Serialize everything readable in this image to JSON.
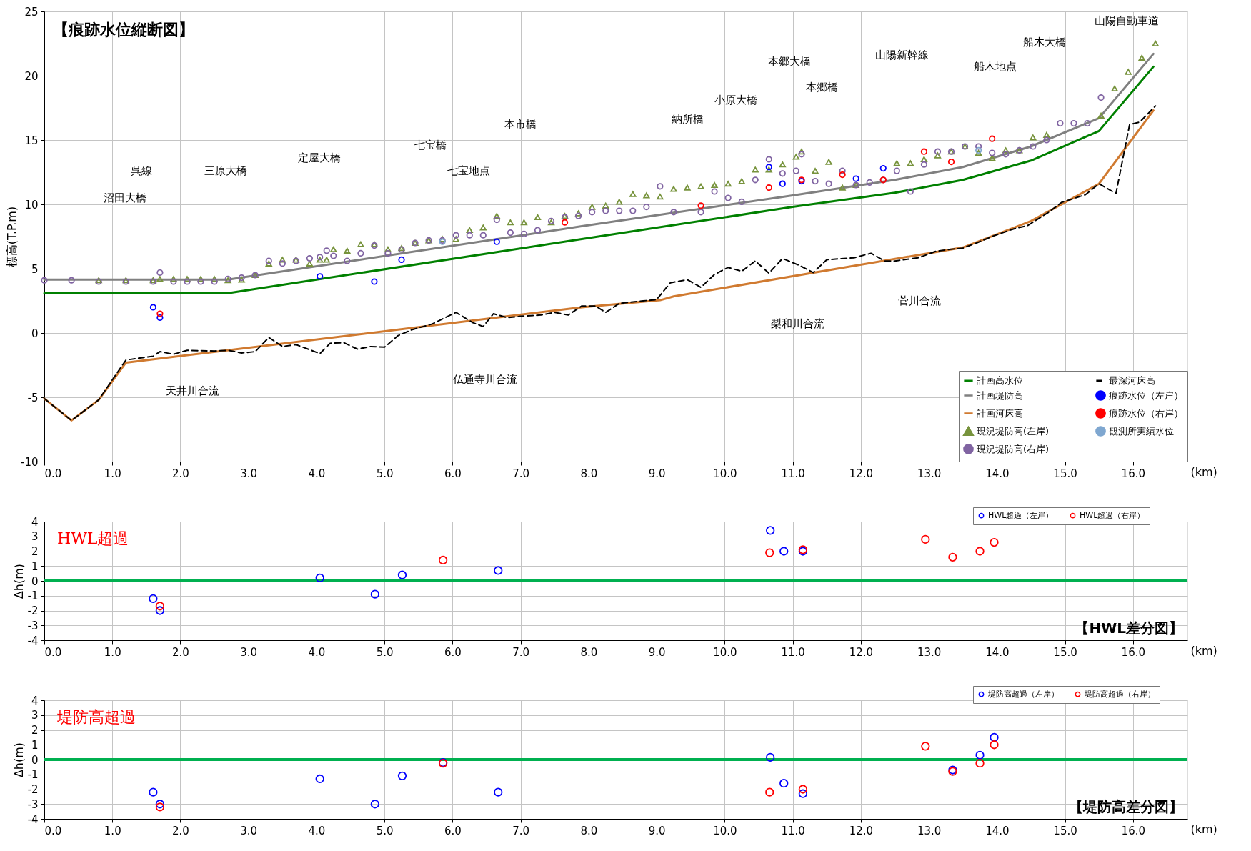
{
  "chart_data": [
    {
      "type": "line",
      "title": "【痕跡水位縦断図】",
      "xlabel": "(km)",
      "ylabel": "標高(T.P.m)",
      "xlim": [
        0,
        16.8
      ],
      "ylim": [
        -10,
        25
      ],
      "xticks": [
        {
          "value": 0,
          "label": "0.0"
        },
        {
          "value": 1,
          "label": "1.0"
        },
        {
          "value": 2,
          "label": "2.0"
        },
        {
          "value": 3,
          "label": "3.0"
        },
        {
          "value": 4,
          "label": "4.0"
        },
        {
          "value": 5,
          "label": "5.0"
        },
        {
          "value": 6,
          "label": "6.0"
        },
        {
          "value": 7,
          "label": "7.0"
        },
        {
          "value": 8,
          "label": "8.0"
        },
        {
          "value": 9,
          "label": "9.0"
        },
        {
          "value": 10,
          "label": "10.0"
        },
        {
          "value": 11,
          "label": "11.0"
        },
        {
          "value": 12,
          "label": "12.0"
        },
        {
          "value": 13,
          "label": "13.0"
        },
        {
          "value": 14,
          "label": "14.0"
        },
        {
          "value": 15,
          "label": "15.0"
        },
        {
          "value": 16,
          "label": "16.0"
        }
      ],
      "yticks": [
        -10,
        -5,
        0,
        5,
        10,
        15,
        20,
        25
      ],
      "grid": true,
      "legend": "bottom right",
      "series": [
        {
          "name": "計画高水位",
          "type": "line",
          "color": "#008000",
          "line_style": "solid",
          "x": [
            0,
            2.7,
            7.9,
            11.0,
            12.5,
            13.5,
            14.5,
            15.5,
            16.3
          ],
          "values": [
            3.1,
            3.1,
            7.3,
            9.8,
            10.9,
            11.9,
            13.4,
            15.7,
            20.7
          ]
        },
        {
          "name": "計画堤防高",
          "type": "line",
          "color": "#808080",
          "line_style": "solid",
          "x": [
            0,
            2.7,
            7.9,
            11.0,
            12.5,
            13.5,
            14.5,
            15.5,
            16.3
          ],
          "values": [
            4.15,
            4.15,
            8.3,
            10.7,
            11.9,
            12.9,
            14.5,
            16.7,
            21.7
          ]
        },
        {
          "name": "計画河床高",
          "type": "line",
          "color": "#d07a30",
          "line_style": "solid",
          "x": [
            0,
            0.4,
            0.8,
            1.2,
            7.9,
            9.05,
            9.25,
            13.5,
            14.5,
            15.5,
            16.3
          ],
          "values": [
            -5.1,
            -6.8,
            -5.2,
            -2.3,
            2.0,
            2.55,
            2.85,
            6.65,
            8.7,
            11.6,
            17.3
          ]
        },
        {
          "name": "現況堤防高(左岸)",
          "type": "scatter",
          "marker": "triangle",
          "color": "#77933c",
          "x": [
            0.8,
            1.2,
            1.6,
            1.7,
            1.9,
            2.1,
            2.3,
            2.5,
            2.7,
            2.9,
            3.1,
            3.3,
            3.5,
            3.7,
            3.9,
            4.05,
            4.15,
            4.25,
            4.45,
            4.65,
            4.85,
            5.05,
            5.25,
            5.45,
            5.65,
            5.85,
            6.05,
            6.25,
            6.45,
            6.65,
            6.85,
            7.05,
            7.25,
            7.45,
            7.65,
            7.85,
            8.05,
            8.25,
            8.45,
            8.65,
            8.85,
            9.05,
            9.25,
            9.45,
            9.65,
            9.85,
            10.05,
            10.25,
            10.45,
            10.65,
            10.85,
            11.05,
            11.13,
            11.33,
            11.53,
            11.73,
            11.93,
            12.53,
            12.73,
            12.93,
            13.13,
            13.33,
            13.53,
            13.73,
            13.93,
            14.13,
            14.33,
            14.53,
            14.73,
            15.53,
            15.73,
            15.93,
            16.13,
            16.33
          ],
          "values": [
            4.1,
            4.1,
            4.1,
            4.2,
            4.2,
            4.2,
            4.2,
            4.2,
            4.1,
            4.15,
            4.5,
            5.4,
            5.7,
            5.7,
            5.4,
            5.7,
            5.7,
            6.5,
            6.4,
            6.9,
            6.9,
            6.5,
            6.6,
            7.0,
            7.2,
            7.3,
            7.3,
            8.0,
            8.2,
            9.1,
            8.6,
            8.6,
            9.0,
            8.6,
            9.1,
            9.3,
            9.8,
            9.9,
            10.2,
            10.8,
            10.7,
            10.6,
            11.2,
            11.3,
            11.4,
            11.5,
            11.6,
            11.8,
            12.7,
            12.7,
            13.1,
            13.7,
            14.1,
            12.6,
            13.3,
            11.3,
            11.5,
            13.2,
            13.2,
            13.5,
            13.8,
            14.1,
            14.5,
            14.0,
            13.6,
            14.2,
            14.2,
            15.2,
            15.4,
            16.9,
            19.0,
            20.3,
            21.4,
            22.5
          ]
        },
        {
          "name": "現況堤防高(右岸)",
          "type": "scatter",
          "marker": "circle",
          "color": "#8064a2",
          "x": [
            0,
            0.4,
            0.8,
            1.2,
            1.6,
            1.7,
            1.9,
            2.1,
            2.3,
            2.5,
            2.7,
            2.9,
            3.1,
            3.3,
            3.5,
            3.7,
            3.9,
            4.05,
            4.15,
            4.25,
            4.45,
            4.65,
            4.85,
            5.05,
            5.25,
            5.45,
            5.65,
            5.85,
            6.05,
            6.25,
            6.45,
            6.65,
            6.85,
            7.05,
            7.25,
            7.45,
            7.65,
            7.85,
            8.05,
            8.25,
            8.45,
            8.65,
            8.85,
            9.05,
            9.25,
            9.65,
            9.85,
            10.05,
            10.25,
            10.45,
            10.65,
            10.85,
            11.05,
            11.13,
            11.33,
            11.53,
            11.73,
            11.93,
            12.13,
            12.33,
            12.53,
            12.73,
            12.93,
            13.13,
            13.33,
            13.53,
            13.73,
            13.93,
            14.13,
            14.33,
            14.53,
            14.73,
            14.93,
            15.13,
            15.33,
            15.53
          ],
          "values": [
            4.1,
            4.1,
            4.0,
            4.0,
            4.0,
            4.7,
            4.0,
            4.0,
            4.0,
            4.0,
            4.2,
            4.3,
            4.5,
            5.6,
            5.4,
            5.6,
            5.8,
            5.9,
            6.4,
            6.0,
            5.6,
            6.2,
            6.8,
            6.2,
            6.5,
            7.0,
            7.2,
            7.2,
            7.6,
            7.6,
            7.6,
            8.8,
            7.8,
            7.7,
            8.0,
            8.7,
            9.0,
            9.1,
            9.4,
            9.5,
            9.5,
            9.5,
            9.8,
            11.4,
            9.4,
            9.4,
            11.0,
            10.5,
            10.2,
            11.9,
            13.5,
            12.4,
            12.6,
            13.9,
            11.8,
            11.6,
            12.6,
            11.5,
            11.7,
            11.9,
            12.6,
            11.0,
            13.1,
            14.1,
            14.1,
            14.5,
            14.5,
            14.0,
            13.9,
            14.2,
            14.5,
            15.0,
            16.3,
            16.3,
            16.3,
            18.3
          ]
        },
        {
          "name": "最深河床高",
          "type": "line",
          "color": "#000000",
          "line_style": "dashed",
          "x": [
            0,
            0.4,
            0.8,
            1.2,
            1.6,
            1.7,
            1.9,
            2.1,
            2.5,
            2.7,
            2.9,
            3.1,
            3.3,
            3.5,
            3.7,
            4.05,
            4.2,
            4.4,
            4.6,
            4.8,
            5.0,
            5.2,
            5.4,
            5.7,
            6.05,
            6.3,
            6.45,
            6.6,
            6.8,
            7.0,
            7.3,
            7.5,
            7.7,
            7.9,
            8.1,
            8.25,
            8.45,
            8.8,
            9.0,
            9.2,
            9.45,
            9.65,
            9.85,
            10.05,
            10.25,
            10.45,
            10.65,
            10.85,
            11.1,
            11.3,
            11.5,
            11.9,
            12.15,
            12.35,
            12.5,
            12.85,
            13.1,
            13.3,
            13.5,
            13.7,
            13.95,
            14.25,
            14.45,
            14.75,
            14.95,
            15.3,
            15.5,
            15.75,
            15.95,
            16.1,
            16.33
          ],
          "values": [
            -5.1,
            -6.8,
            -5.2,
            -2.1,
            -1.8,
            -1.45,
            -1.65,
            -1.35,
            -1.4,
            -1.35,
            -1.55,
            -1.45,
            -0.35,
            -1.05,
            -0.9,
            -1.6,
            -0.8,
            -0.75,
            -1.25,
            -1.05,
            -1.1,
            -0.2,
            0.25,
            0.7,
            1.6,
            0.8,
            0.5,
            1.5,
            1.2,
            1.3,
            1.4,
            1.6,
            1.4,
            2.1,
            2.1,
            1.6,
            2.3,
            2.5,
            2.6,
            3.9,
            4.15,
            3.55,
            4.55,
            5.1,
            4.8,
            5.6,
            4.65,
            5.8,
            5.25,
            4.7,
            5.7,
            5.85,
            6.2,
            5.6,
            5.6,
            5.85,
            6.35,
            6.5,
            6.6,
            7.0,
            7.55,
            8.1,
            8.35,
            9.35,
            10.15,
            10.75,
            11.6,
            10.85,
            16.2,
            16.4,
            17.65
          ]
        },
        {
          "name": "痕跡水位（左岸）",
          "type": "scatter",
          "marker": "circle",
          "color": "#0000ff",
          "x": [
            1.6,
            1.7,
            4.05,
            4.85,
            5.25,
            6.65,
            10.65,
            10.85,
            11.13,
            11.93,
            12.33
          ],
          "values": [
            2.0,
            1.2,
            4.4,
            4.0,
            5.7,
            7.1,
            12.9,
            11.6,
            11.8,
            12.0,
            12.8
          ]
        },
        {
          "name": "痕跡水位（右岸）",
          "type": "scatter",
          "marker": "circle",
          "color": "#ff0000",
          "x": [
            1.7,
            7.65,
            9.65,
            10.65,
            11.13,
            11.73,
            12.33,
            12.93,
            13.33,
            13.93
          ],
          "values": [
            1.5,
            8.6,
            9.9,
            11.3,
            11.9,
            12.3,
            11.9,
            14.1,
            13.3,
            15.1
          ]
        },
        {
          "name": "観測所実績水位",
          "type": "scatter",
          "marker": "circle",
          "color": "#7fa7d0",
          "x": [
            5.85,
            13.73
          ],
          "values": [
            7.1,
            14.2
          ]
        }
      ],
      "annotations": [
        "沼田大橋",
        "呉線",
        "三原大橋",
        "定屋大橋",
        "七宝橋",
        "七宝地点",
        "本市橋",
        "天井川合流",
        "仏通寺川合流",
        "納所橋",
        "小原大橋",
        "本郷大橋",
        "本郷橋",
        "山陽新幹線",
        "船木地点",
        "船木大橋",
        "山陽自動車道",
        "梨和川合流",
        "菅川合流"
      ]
    },
    {
      "type": "scatter",
      "title": "【HWL差分図】",
      "xlabel": "(km)",
      "ylabel": "Δh(m)",
      "xlim": [
        0,
        16.8
      ],
      "ylim": [
        -4,
        4
      ],
      "xticks": [
        {
          "value": 0,
          "label": "0.0"
        },
        {
          "value": 1,
          "label": "1.0"
        },
        {
          "value": 2,
          "label": "2.0"
        },
        {
          "value": 3,
          "label": "3.0"
        },
        {
          "value": 4,
          "label": "4.0"
        },
        {
          "value": 5,
          "label": "5.0"
        },
        {
          "value": 6,
          "label": "6.0"
        },
        {
          "value": 7,
          "label": "7.0"
        },
        {
          "value": 8,
          "label": "8.0"
        },
        {
          "value": 9,
          "label": "9.0"
        },
        {
          "value": 10,
          "label": "10.0"
        },
        {
          "value": 11,
          "label": "11.0"
        },
        {
          "value": 12,
          "label": "12.0"
        },
        {
          "value": 13,
          "label": "13.0"
        },
        {
          "value": 14,
          "label": "14.0"
        },
        {
          "value": 15,
          "label": "15.0"
        },
        {
          "value": 16,
          "label": "16.0"
        }
      ],
      "yticks": [
        -4,
        -3,
        -2,
        -1,
        0,
        1,
        2,
        3,
        4
      ],
      "grid": true,
      "legend": "top right",
      "marker": "circle",
      "ref_lines": [
        {
          "axis": "y",
          "value": 0,
          "color": "#00b050"
        }
      ],
      "annotations": [
        "HWL超過"
      ],
      "series": [
        {
          "name": "HWL超過（左岸）",
          "color": "#0000ff",
          "x": [
            1.6,
            1.7,
            4.05,
            4.86,
            5.26,
            6.67,
            10.67,
            10.87,
            11.15
          ],
          "values": [
            -1.2,
            -2.0,
            0.2,
            -0.9,
            0.4,
            0.7,
            3.4,
            2.0,
            2.0
          ]
        },
        {
          "name": "HWL超過（右岸）",
          "color": "#ff0000",
          "x": [
            1.7,
            5.86,
            10.66,
            11.15,
            12.95,
            13.35,
            13.75,
            13.96
          ],
          "values": [
            -1.7,
            1.4,
            1.9,
            2.1,
            2.8,
            1.6,
            2.0,
            2.6
          ]
        }
      ]
    },
    {
      "type": "scatter",
      "title": "【堤防高差分図】",
      "xlabel": "(km)",
      "ylabel": "Δh(m)",
      "xlim": [
        0,
        16.8
      ],
      "ylim": [
        -4,
        4
      ],
      "xticks": [
        {
          "value": 0,
          "label": "0.0"
        },
        {
          "value": 1,
          "label": "1.0"
        },
        {
          "value": 2,
          "label": "2.0"
        },
        {
          "value": 3,
          "label": "3.0"
        },
        {
          "value": 4,
          "label": "4.0"
        },
        {
          "value": 5,
          "label": "5.0"
        },
        {
          "value": 6,
          "label": "6.0"
        },
        {
          "value": 7,
          "label": "7.0"
        },
        {
          "value": 8,
          "label": "8.0"
        },
        {
          "value": 9,
          "label": "9.0"
        },
        {
          "value": 10,
          "label": "10.0"
        },
        {
          "value": 11,
          "label": "11.0"
        },
        {
          "value": 12,
          "label": "12.0"
        },
        {
          "value": 13,
          "label": "13.0"
        },
        {
          "value": 14,
          "label": "14.0"
        },
        {
          "value": 15,
          "label": "15.0"
        },
        {
          "value": 16,
          "label": "16.0"
        }
      ],
      "yticks": [
        -4,
        -3,
        -2,
        -1,
        0,
        1,
        2,
        3,
        4
      ],
      "grid": true,
      "legend": "top right",
      "marker": "circle",
      "ref_lines": [
        {
          "axis": "y",
          "value": 0,
          "color": "#00b050"
        }
      ],
      "annotations": [
        "堤防高超過"
      ],
      "series": [
        {
          "name": "堤防高超過（左岸）",
          "color": "#0000ff",
          "x": [
            1.6,
            1.7,
            4.05,
            4.86,
            5.26,
            5.86,
            6.67,
            10.67,
            10.87,
            11.15,
            13.35,
            13.75,
            13.96
          ],
          "values": [
            -2.2,
            -3.0,
            -1.3,
            -3.0,
            -1.1,
            -0.2,
            -2.2,
            0.15,
            -1.6,
            -2.3,
            -0.7,
            0.3,
            1.5
          ]
        },
        {
          "name": "堤防高超過（右岸）",
          "color": "#ff0000",
          "x": [
            1.7,
            5.86,
            10.66,
            11.15,
            12.95,
            13.35,
            13.75,
            13.96
          ],
          "values": [
            -3.2,
            -0.25,
            -2.2,
            -2.0,
            0.9,
            -0.8,
            -0.25,
            1.0
          ]
        }
      ]
    }
  ]
}
